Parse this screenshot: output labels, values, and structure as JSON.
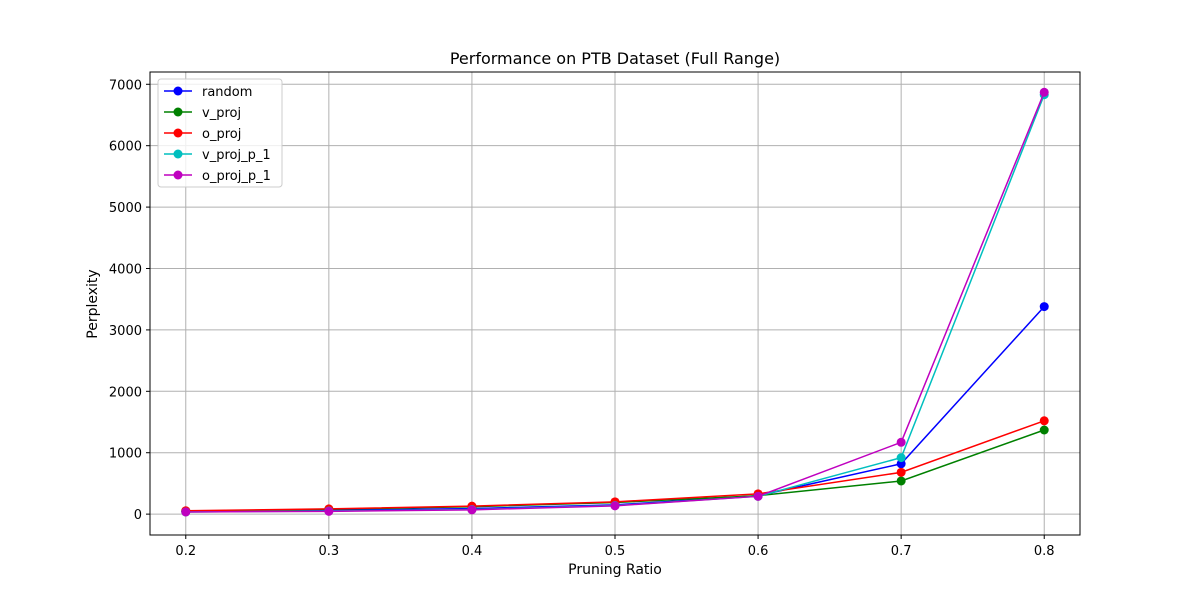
{
  "chart_data": {
    "type": "line",
    "title": "Performance on PTB Dataset (Full Range)",
    "xlabel": "Pruning Ratio",
    "ylabel": "Perplexity",
    "x": [
      0.2,
      0.3,
      0.4,
      0.5,
      0.6,
      0.7,
      0.8
    ],
    "xticks": [
      "0.2",
      "0.3",
      "0.4",
      "0.5",
      "0.6",
      "0.7",
      "0.8"
    ],
    "yticks": [
      "0",
      "1000",
      "2000",
      "3000",
      "4000",
      "5000",
      "6000",
      "7000"
    ],
    "xlim": [
      0.175,
      0.825
    ],
    "ylim": [
      -340,
      7200
    ],
    "grid": true,
    "legend_position": "top-left",
    "series": [
      {
        "name": "random",
        "color": "#0000ff",
        "values": [
          40,
          65,
          90,
          150,
          300,
          820,
          3380
        ]
      },
      {
        "name": "v_proj",
        "color": "#008000",
        "values": [
          48,
          80,
          120,
          190,
          300,
          540,
          1370
        ]
      },
      {
        "name": "o_proj",
        "color": "#ff0000",
        "values": [
          55,
          85,
          130,
          200,
          330,
          680,
          1520
        ]
      },
      {
        "name": "v_proj_p_1",
        "color": "#00bfbf",
        "values": [
          35,
          50,
          75,
          140,
          290,
          920,
          6830
        ]
      },
      {
        "name": "o_proj_p_1",
        "color": "#bf00bf",
        "values": [
          35,
          45,
          70,
          135,
          290,
          1170,
          6870
        ]
      }
    ]
  }
}
